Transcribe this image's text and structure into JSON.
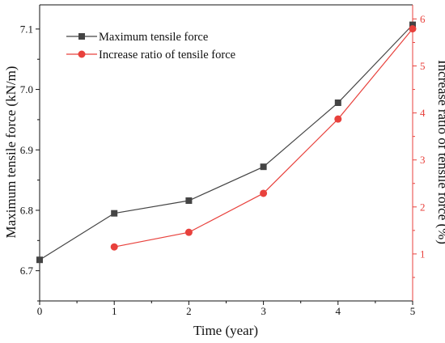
{
  "chart_data": {
    "type": "line",
    "title": "",
    "xlabel": "Time (year)",
    "ylabel": "Maximum tensile force (kN/m)",
    "y2label": "Increase ratio of tensile force (%)",
    "xlim": [
      0,
      5
    ],
    "ylim": [
      6.65,
      7.14
    ],
    "y2lim": [
      0.0,
      6.3
    ],
    "x_ticks": [
      0,
      1,
      2,
      3,
      4,
      5
    ],
    "y_ticks": [
      6.7,
      6.8,
      6.9,
      7.0,
      7.1
    ],
    "y2_ticks": [
      1,
      2,
      3,
      4,
      5,
      6
    ],
    "grid": false,
    "legend": "top-left",
    "series": [
      {
        "name": "Maximum tensile force",
        "axis": "left",
        "color": "#444444",
        "marker": "square",
        "x": [
          0,
          1,
          2,
          3,
          4,
          5
        ],
        "values": [
          6.718,
          6.795,
          6.816,
          6.872,
          6.978,
          7.107
        ]
      },
      {
        "name": "Increase ratio of tensile force",
        "axis": "right",
        "color": "#e8413c",
        "marker": "circle",
        "x": [
          1,
          2,
          3,
          4,
          5
        ],
        "values": [
          1.15,
          1.46,
          2.29,
          3.87,
          5.79
        ]
      }
    ],
    "right_axis_color": "#e8413c"
  }
}
